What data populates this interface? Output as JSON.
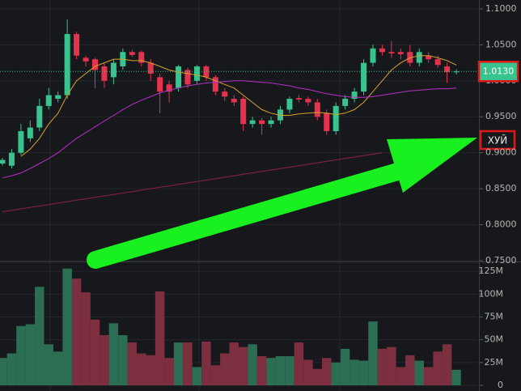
{
  "chart_data": [
    {
      "type": "candlestick",
      "open": [
        0.885,
        0.882,
        0.9,
        0.92,
        0.935,
        0.965,
        0.975,
        0.98,
        1.065,
        1.032,
        1.03,
        1.02,
        1.005,
        1.02,
        1.04,
        1.04,
        1.025,
        1.005,
        0.995,
        0.99,
        1.015,
        1.0,
        1.02,
        1.005,
        0.985,
        0.975,
        0.975,
        0.94,
        0.945,
        0.94,
        0.945,
        0.96,
        0.976,
        0.975,
        0.97,
        0.955,
        0.93,
        0.965,
        0.975,
        0.985,
        1.025,
        1.045,
        1.04,
        1.04,
        1.04,
        1.025,
        1.035,
        1.03,
        1.02,
        1.012
      ],
      "high": [
        0.893,
        0.905,
        0.94,
        0.945,
        0.975,
        0.99,
        0.985,
        1.085,
        1.068,
        1.035,
        1.032,
        1.025,
        1.03,
        1.045,
        1.043,
        1.042,
        1.03,
        1.01,
        1.0,
        1.022,
        1.018,
        1.022,
        1.022,
        1.008,
        0.99,
        0.98,
        0.978,
        0.95,
        0.948,
        0.95,
        0.965,
        0.978,
        0.98,
        0.978,
        0.975,
        0.96,
        0.97,
        0.98,
        0.99,
        1.03,
        1.05,
        1.05,
        1.055,
        1.045,
        1.05,
        1.045,
        1.04,
        1.035,
        1.025,
        1.016
      ],
      "low": [
        0.882,
        0.878,
        0.897,
        0.915,
        0.93,
        0.96,
        0.97,
        0.975,
        1.03,
        1.02,
        0.99,
        0.99,
        0.995,
        1.015,
        1.033,
        1.02,
        1.0,
        0.955,
        0.97,
        0.985,
        0.99,
        0.995,
        1.0,
        0.98,
        0.972,
        0.965,
        0.93,
        0.935,
        0.925,
        0.935,
        0.94,
        0.955,
        0.97,
        0.965,
        0.945,
        0.925,
        0.925,
        0.96,
        0.97,
        0.98,
        1.02,
        1.035,
        1.032,
        1.03,
        1.02,
        1.02,
        1.025,
        1.018,
        0.997,
        1.009
      ],
      "close": [
        0.89,
        0.9,
        0.93,
        0.935,
        0.965,
        0.98,
        0.98,
        1.065,
        1.035,
        1.027,
        1.015,
        1.0,
        1.025,
        1.04,
        1.036,
        1.025,
        1.01,
        0.985,
        0.985,
        1.02,
        0.995,
        1.02,
        1.005,
        0.985,
        0.978,
        0.97,
        0.94,
        0.945,
        0.94,
        0.945,
        0.96,
        0.975,
        0.974,
        0.97,
        0.95,
        0.93,
        0.965,
        0.975,
        0.985,
        1.025,
        1.045,
        1.04,
        1.038,
        1.037,
        1.025,
        1.04,
        1.03,
        1.022,
        1.012,
        1.013
      ],
      "up_color": "#38c48e",
      "down_color": "#e6334d",
      "series": [
        {
          "color": "#d6a12a",
          "values": [
            null,
            null,
            0.895,
            0.905,
            0.92,
            0.94,
            0.955,
            0.98,
            1.0,
            1.01,
            1.02,
            1.025,
            1.03,
            1.03,
            1.028,
            1.028,
            1.025,
            1.02,
            1.015,
            1.012,
            1.01,
            1.008,
            1.005,
            1.0,
            0.995,
            0.99,
            0.98,
            0.97,
            0.96,
            0.955,
            0.952,
            0.952,
            0.954,
            0.955,
            0.956,
            0.955,
            0.953,
            0.955,
            0.96,
            0.97,
            0.985,
            1.0,
            1.015,
            1.025,
            1.032,
            1.035,
            1.035,
            1.032,
            1.028,
            1.022
          ]
        },
        {
          "color": "#b630c4",
          "values": [
            0.865,
            0.868,
            0.872,
            0.878,
            0.885,
            0.892,
            0.9,
            0.91,
            0.92,
            0.928,
            0.936,
            0.944,
            0.952,
            0.96,
            0.967,
            0.973,
            0.978,
            0.983,
            0.987,
            0.99,
            0.993,
            0.995,
            0.997,
            0.998,
            0.999,
            1.0,
            1.0,
            0.999,
            0.998,
            0.997,
            0.995,
            0.993,
            0.99,
            0.988,
            0.985,
            0.982,
            0.98,
            0.978,
            0.977,
            0.977,
            0.978,
            0.98,
            0.982,
            0.984,
            0.986,
            0.987,
            0.988,
            0.989,
            0.989,
            0.99
          ]
        },
        {
          "color": "#8c1f52",
          "values": [
            0.818,
            0.82,
            0.822,
            0.824,
            0.826,
            0.828,
            0.83,
            0.832,
            0.834,
            0.836,
            0.838,
            0.84,
            0.842,
            0.844,
            0.846,
            0.848,
            0.85,
            0.852,
            0.854,
            0.856,
            0.858,
            0.86,
            0.862,
            0.864,
            0.866,
            0.868,
            0.87,
            0.872,
            0.874,
            0.876,
            0.878,
            0.88,
            0.882,
            0.884,
            0.886,
            0.888,
            0.89,
            0.892,
            0.894,
            0.896,
            0.898,
            0.9,
            null,
            null,
            null,
            null,
            null,
            null,
            null,
            null
          ]
        }
      ],
      "ylim": [
        0.75,
        1.1123
      ],
      "yticks": [
        {
          "value": 0.75,
          "label": "0.7500"
        },
        {
          "value": 0.8,
          "label": "0.8000"
        },
        {
          "value": 0.85,
          "label": "0.8500"
        },
        {
          "value": 0.9,
          "label": "0.9000"
        },
        {
          "value": 0.95,
          "label": "0.9500"
        },
        {
          "value": 1.0,
          "label": "1.0000"
        },
        {
          "value": 1.05,
          "label": "1.0500"
        },
        {
          "value": 1.1,
          "label": "1.1000"
        }
      ],
      "grid": true,
      "last_price": {
        "value": 1.013,
        "label": "1.0130"
      },
      "annotation": "ХУЙ"
    },
    {
      "type": "bar",
      "values": [
        30000000,
        35000000,
        65000000,
        67000000,
        108000000,
        45000000,
        37000000,
        128000000,
        117000000,
        102000000,
        72000000,
        55000000,
        68000000,
        55000000,
        47000000,
        35000000,
        33000000,
        103000000,
        30000000,
        47000000,
        47000000,
        20000000,
        48000000,
        22000000,
        35000000,
        47000000,
        42000000,
        45000000,
        32000000,
        30000000,
        32000000,
        32000000,
        47000000,
        28000000,
        18000000,
        30000000,
        25000000,
        40000000,
        28000000,
        27000000,
        70000000,
        40000000,
        42000000,
        20000000,
        33000000,
        27000000,
        20000000,
        37000000,
        45000000,
        17000000
      ],
      "up_color": "#2c6e53",
      "down_color": "#7d2f40",
      "ylim": [
        0,
        134000000
      ],
      "yticks": [
        0,
        {
          "value": 25000000,
          "label": "25M"
        },
        {
          "value": 50000000,
          "label": "50M"
        },
        {
          "value": 75000000,
          "label": "75M"
        },
        {
          "value": 100000000,
          "label": "100M"
        },
        {
          "value": 125000000,
          "label": "125M"
        }
      ],
      "grid": true
    }
  ]
}
